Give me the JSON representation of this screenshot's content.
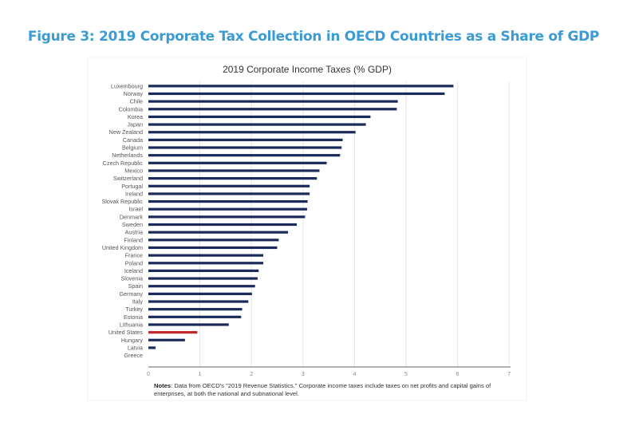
{
  "figure_title": "Figure 3: 2019 Corporate Tax Collection in OECD Countries as a Share of GDP",
  "notes_label": "Notes",
  "notes_text": ": Data from OECD's \"2019 Revenue Statistics.\" Corporate income taxes include taxes on net profits and capital gains of enterprises, at both the national and subnational level.",
  "colors": {
    "title": "#3a9bd5",
    "bar": "#1b2a5a",
    "highlight": "#c0282d"
  },
  "chart_data": {
    "type": "bar",
    "orientation": "horizontal",
    "title": "2019 Corporate Income Taxes (% GDP)",
    "xlabel": "",
    "ylabel": "",
    "xlim": [
      0,
      7
    ],
    "xticks": [
      "0",
      "1",
      "2",
      "3",
      "4",
      "5",
      "6",
      "7"
    ],
    "grid": true,
    "highlight": "United States",
    "categories": [
      "Luxembourg",
      "Norway",
      "Chile",
      "Colombia",
      "Korea",
      "Japan",
      "New Zealand",
      "Canada",
      "Belgium",
      "Netherlands",
      "Czech Republic",
      "Mexico",
      "Switzerland",
      "Portugal",
      "Ireland",
      "Slovak Republic",
      "Israel",
      "Denmark",
      "Sweden",
      "Austria",
      "Finland",
      "United Kingdom",
      "France",
      "Poland",
      "Iceland",
      "Slovenia",
      "Spain",
      "Germany",
      "Italy",
      "Turkey",
      "Estonia",
      "Lithuania",
      "United States",
      "Hungary",
      "Latvia",
      "Greece"
    ],
    "values": [
      5.92,
      5.75,
      4.84,
      4.82,
      4.31,
      4.22,
      4.02,
      3.77,
      3.75,
      3.72,
      3.46,
      3.32,
      3.27,
      3.13,
      3.13,
      3.09,
      3.08,
      3.04,
      2.88,
      2.71,
      2.53,
      2.5,
      2.23,
      2.23,
      2.14,
      2.12,
      2.07,
      2.01,
      1.94,
      1.82,
      1.8,
      1.56,
      0.95,
      0.71,
      0.14,
      0.0
    ]
  }
}
